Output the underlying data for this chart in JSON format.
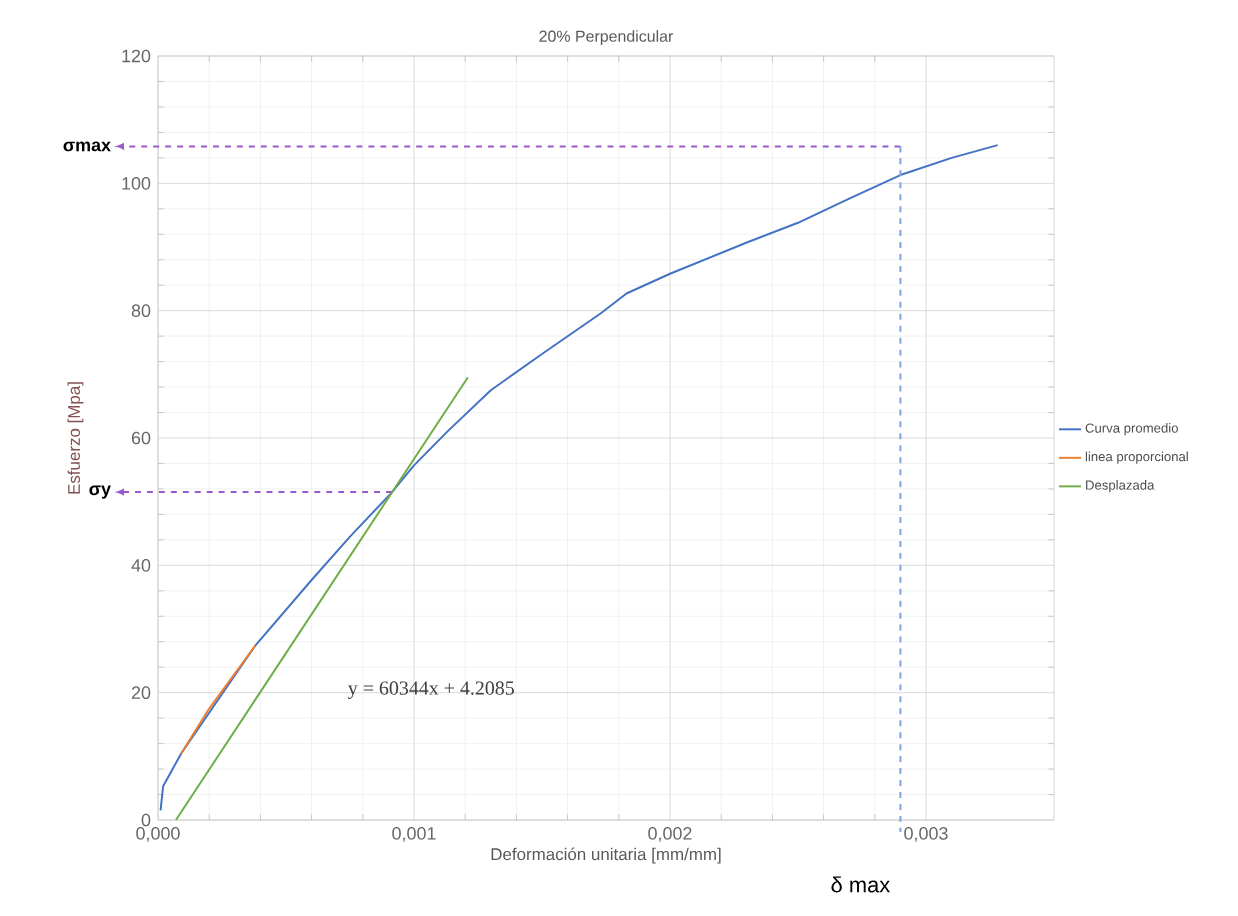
{
  "chart_data": {
    "type": "line",
    "title": "20% Perpendicular",
    "xlabel": "Deformación unitaria [mm/mm]",
    "ylabel": "Esfuerzo [Mpa]",
    "series": [
      {
        "name": "Curva promedio",
        "color": "#4472c4",
        "x": [
          1e-05,
          2e-05,
          9e-05,
          0.0002,
          0.00038,
          0.0006,
          0.00075,
          0.00091,
          0.001,
          0.00113,
          0.0013,
          0.0015,
          0.00173,
          0.00183,
          0.002,
          0.0023,
          0.0025,
          0.0027,
          0.0029,
          0.0031,
          0.00328
        ],
        "values": [
          1.5,
          5.3,
          10.4,
          null,
          27.4,
          37.7,
          44.5,
          51.3,
          55.7,
          61.0,
          67.5,
          73.2,
          79.6,
          82.7,
          85.8,
          90.7,
          93.8,
          97.6,
          101.3,
          104.0,
          106.0
        ]
      },
      {
        "name": "linea proporcional",
        "color": "#ed7d31",
        "x": [
          9e-05,
          0.0002,
          0.00038
        ],
        "values": [
          10.4,
          17.5,
          27.4
        ]
      },
      {
        "name": "Desplazada",
        "color": "#70ad47",
        "x": [
          7e-05,
          0.00121
        ],
        "values": [
          0,
          69.5
        ]
      }
    ],
    "xlim": [
      0,
      0.0035
    ],
    "ylim": [
      0,
      120
    ],
    "xticks": [
      {
        "value": 0,
        "label": "0,000"
      },
      {
        "value": 0.001,
        "label": "0,001"
      },
      {
        "value": 0.002,
        "label": "0,002"
      },
      {
        "value": 0.003,
        "label": "0,003"
      }
    ],
    "yticks": [
      0,
      20,
      40,
      60,
      80,
      100,
      120
    ],
    "grid": true,
    "legend": "right",
    "marker": "none",
    "line_style": "solid",
    "ref_lines": [
      {
        "axis": "y",
        "value": 105.8,
        "label": "σmax",
        "color": "#9b59d0",
        "line_style": "dashed"
      },
      {
        "axis": "y",
        "value": 51.5,
        "label": "σy",
        "color": "#9b59d0",
        "line_style": "dashed"
      },
      {
        "axis": "x",
        "value": 0.0029,
        "label": "δ max",
        "color": "#7fa3e0",
        "line_style": "dashed"
      }
    ],
    "annotations": [
      "y = 60344x + 4.2085"
    ]
  }
}
